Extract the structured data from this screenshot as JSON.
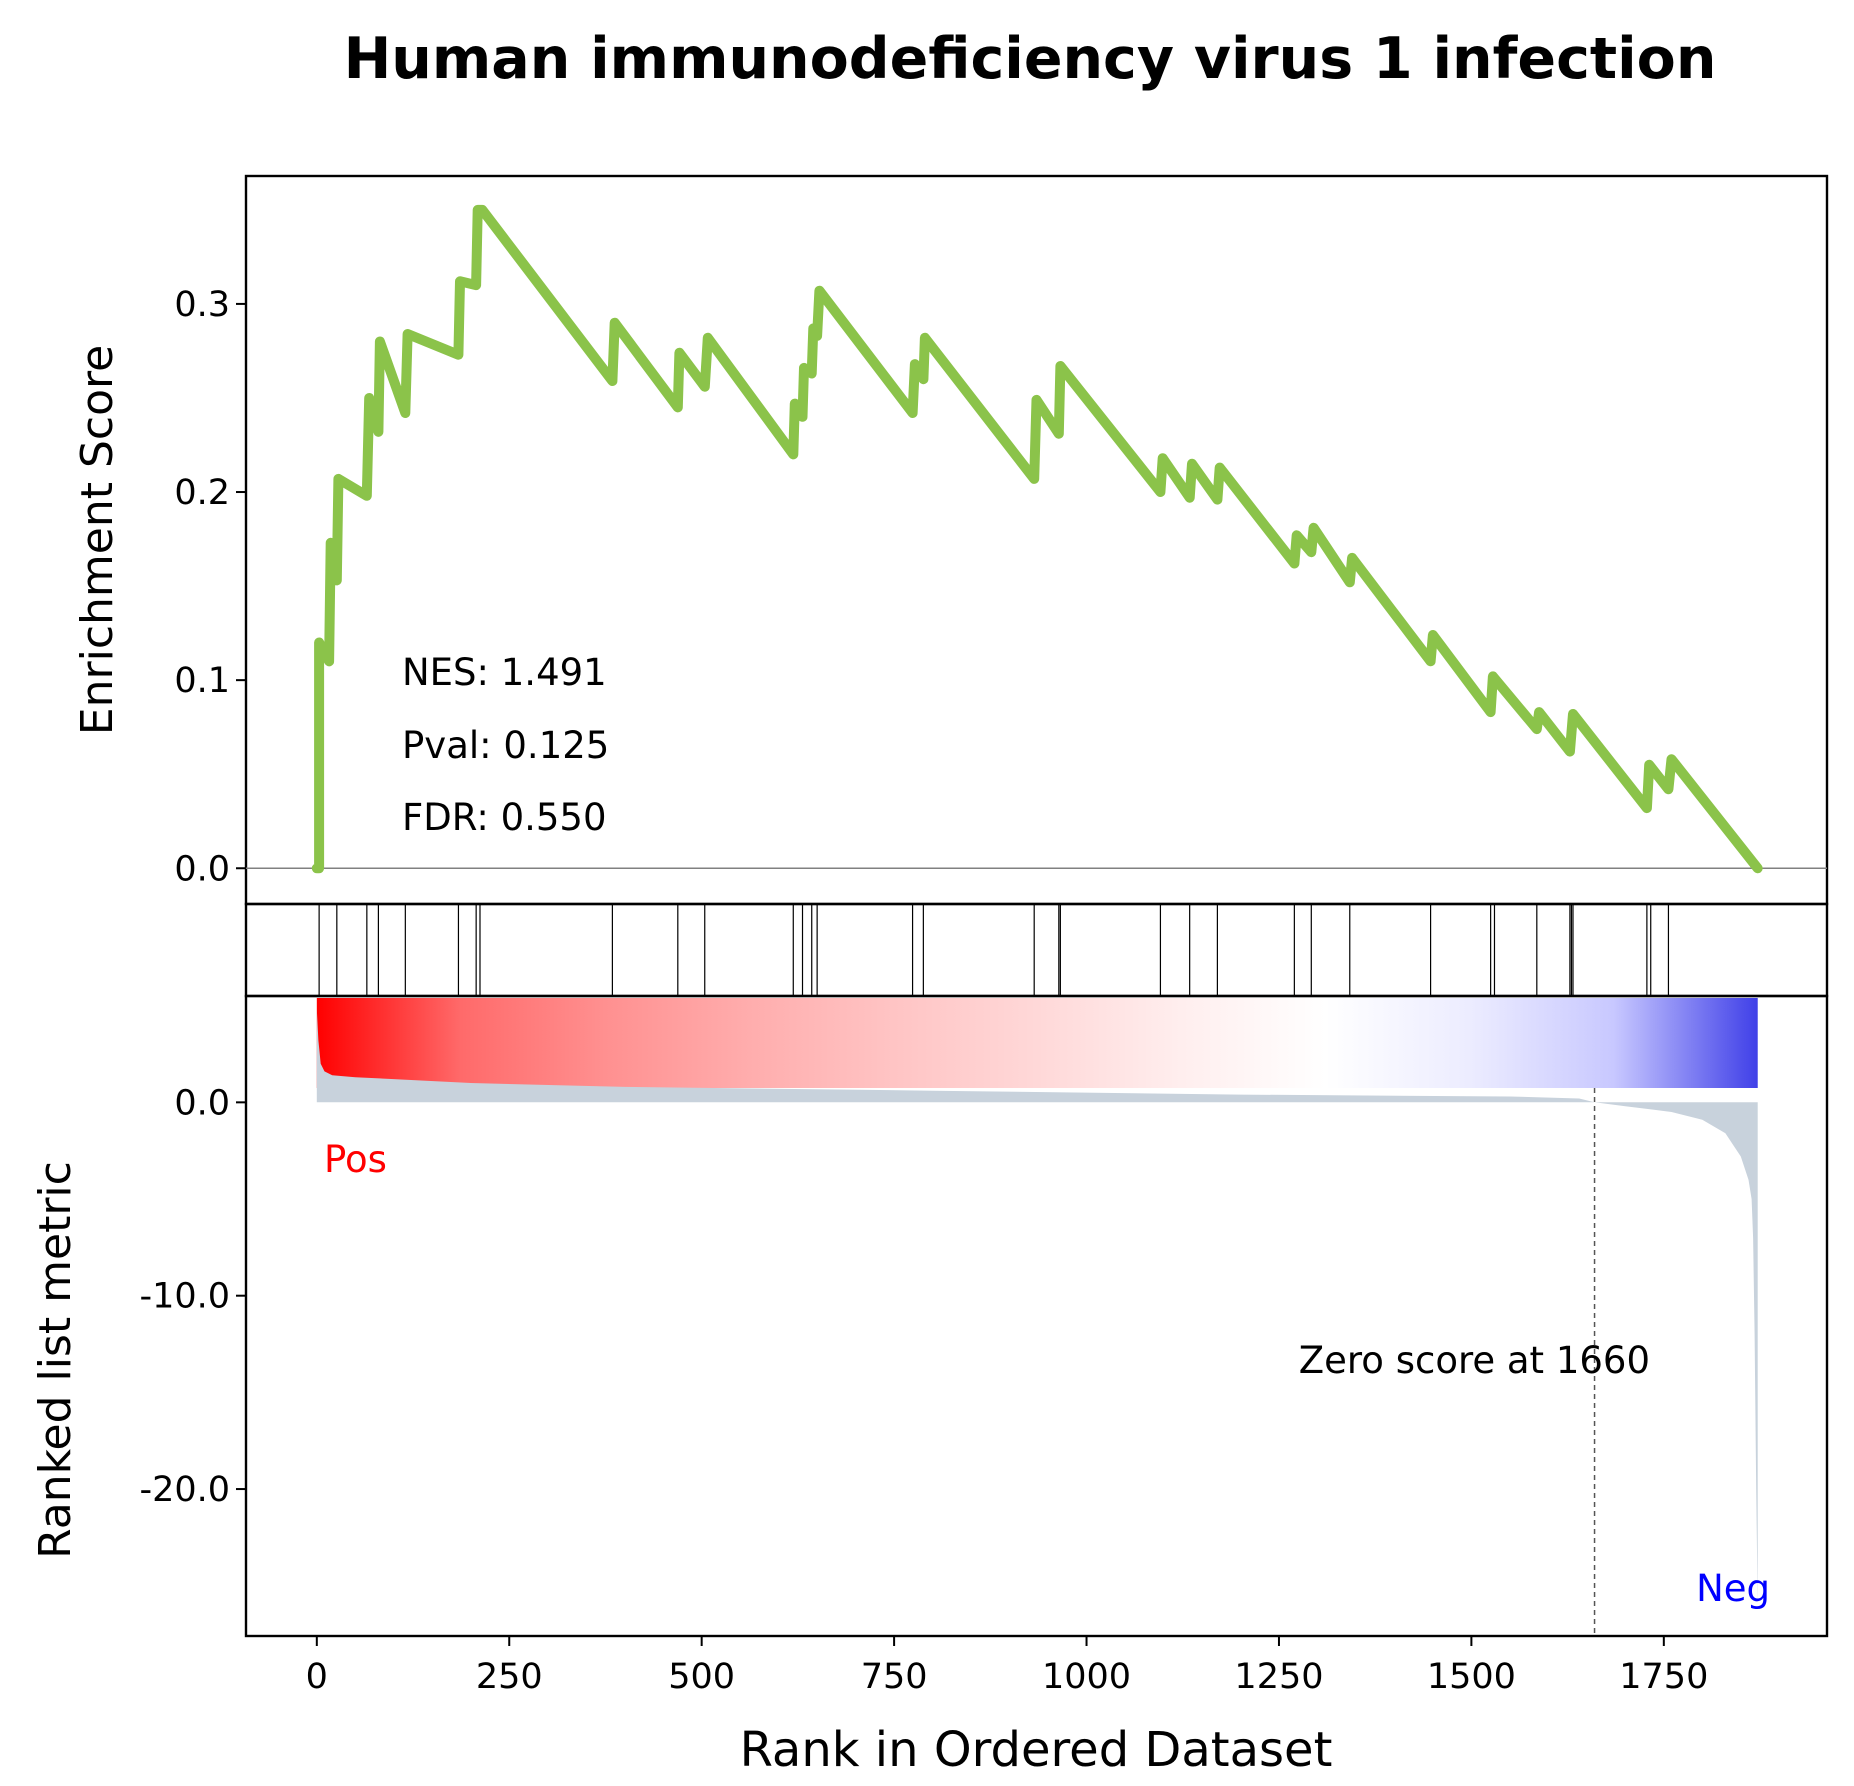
{
  "chart_data": {
    "type": "line",
    "title": "Human immunodeficiency virus 1 infection",
    "xlabel": "Rank in Ordered Dataset",
    "xlim": [
      -92,
      1962
    ],
    "xticks": [
      0,
      250,
      500,
      750,
      1000,
      1250,
      1500,
      1750
    ],
    "xtick_labels": [
      "0",
      "250",
      "500",
      "750",
      "1000",
      "1250",
      "1500",
      "1750"
    ],
    "es_panel": {
      "ylabel": "Enrichment Score",
      "ylim": [
        -0.019,
        0.368
      ],
      "yticks": [
        0.0,
        0.1,
        0.2,
        0.3
      ],
      "ytick_labels": [
        "0.0",
        "0.1",
        "0.2",
        "0.3"
      ],
      "line_color": "#8bc34a",
      "baseline_color": "#808080",
      "stats": [
        "NES: 1.491",
        "Pval: 0.125",
        "FDR: 0.550"
      ],
      "x": [
        0,
        3,
        3,
        16,
        18,
        26,
        28,
        65,
        68,
        80,
        82,
        115,
        118,
        184,
        186,
        207,
        209,
        212,
        215,
        384,
        387,
        469,
        471,
        504,
        508,
        619,
        621,
        631,
        633,
        643,
        645,
        650,
        653,
        774,
        777,
        788,
        790,
        932,
        935,
        964,
        966,
        1096,
        1099,
        1134,
        1137,
        1170,
        1173,
        1270,
        1273,
        1292,
        1295,
        1342,
        1345,
        1447,
        1450,
        1525,
        1528,
        1585,
        1588,
        1628,
        1632,
        1728,
        1731,
        1756,
        1760,
        1872
      ],
      "y": [
        0.0,
        0.0,
        0.12,
        0.11,
        0.173,
        0.153,
        0.207,
        0.198,
        0.25,
        0.232,
        0.28,
        0.242,
        0.284,
        0.273,
        0.312,
        0.31,
        0.35,
        0.35,
        0.35,
        0.259,
        0.29,
        0.245,
        0.274,
        0.256,
        0.282,
        0.22,
        0.247,
        0.24,
        0.266,
        0.263,
        0.287,
        0.283,
        0.307,
        0.242,
        0.268,
        0.26,
        0.282,
        0.207,
        0.249,
        0.231,
        0.267,
        0.2,
        0.218,
        0.197,
        0.215,
        0.196,
        0.213,
        0.162,
        0.177,
        0.168,
        0.181,
        0.152,
        0.165,
        0.11,
        0.124,
        0.083,
        0.102,
        0.074,
        0.083,
        0.062,
        0.082,
        0.032,
        0.055,
        0.042,
        0.058,
        0.0
      ]
    },
    "hits_panel": {
      "hit_ranks": [
        3,
        26,
        65,
        80,
        115,
        184,
        207,
        212,
        384,
        469,
        504,
        619,
        631,
        643,
        650,
        774,
        788,
        932,
        964,
        966,
        1096,
        1134,
        1170,
        1270,
        1292,
        1342,
        1447,
        1525,
        1530,
        1585,
        1628,
        1630,
        1632,
        1728,
        1733,
        1756
      ],
      "heatmap_range": [
        0,
        1872
      ],
      "heatmap_colors": [
        "#ff0000",
        "#ff6a6a",
        "#ff9090",
        "#ffadad",
        "#ffc4c4",
        "#ffd8d8",
        "#ffeeee",
        "#ffffff",
        "#ececff",
        "#c8c8ff",
        "#4040e8"
      ]
    },
    "metric_panel": {
      "ylabel": "Ranked list metric",
      "ylim": [
        -27.6,
        5.5
      ],
      "yticks": [
        0.0,
        -10.0,
        -20.0
      ],
      "ytick_labels": [
        "0.0",
        "-10.0",
        "-20.0"
      ],
      "fill_color": "#c8d2dc",
      "x": [
        0,
        2,
        5,
        10,
        20,
        50,
        100,
        200,
        400,
        800,
        1200,
        1550,
        1640,
        1660,
        1700,
        1760,
        1800,
        1830,
        1850,
        1860,
        1864,
        1866,
        1868,
        1870,
        1872
      ],
      "y": [
        4.8,
        3.2,
        2.0,
        1.6,
        1.4,
        1.3,
        1.2,
        1.0,
        0.8,
        0.6,
        0.4,
        0.3,
        0.2,
        0.0,
        -0.2,
        -0.5,
        -0.9,
        -1.6,
        -2.8,
        -4.0,
        -5.0,
        -7.0,
        -12.0,
        -20.0,
        -26.0
      ],
      "zero_cross_rank": 1660,
      "zero_line_label": "Zero score at 1660",
      "pos_label": "Pos",
      "pos_color": "#ff0000",
      "neg_label": "Neg",
      "neg_color": "#0000ff"
    }
  }
}
